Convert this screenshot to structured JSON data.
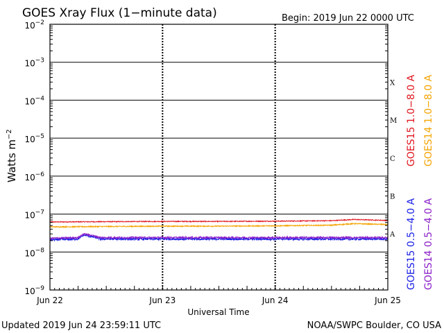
{
  "chart_data": {
    "type": "line",
    "title": "GOES Xray Flux (1−minute data)",
    "begin_text": "Begin:  2019 Jun 22 0000 UTC",
    "xlabel": "Universal Time",
    "ylabel": "Watts m",
    "ylabel_exp": "−2",
    "y_scale": "log",
    "ylim": [
      1e-09,
      0.01
    ],
    "y_ticks": [
      {
        "base": "10",
        "exp": "−9",
        "value": 1e-09
      },
      {
        "base": "10",
        "exp": "−8",
        "value": 1e-08
      },
      {
        "base": "10",
        "exp": "−7",
        "value": 1e-07
      },
      {
        "base": "10",
        "exp": "−6",
        "value": 1e-06
      },
      {
        "base": "10",
        "exp": "−5",
        "value": 1e-05
      },
      {
        "base": "10",
        "exp": "−4",
        "value": 0.0001
      },
      {
        "base": "10",
        "exp": "−3",
        "value": 0.001
      },
      {
        "base": "10",
        "exp": "−2",
        "value": 0.01
      }
    ],
    "x_ticks": [
      "Jun 22",
      "Jun 23",
      "Jun 24",
      "Jun 25"
    ],
    "flare_classes": [
      {
        "label": "A",
        "value": 3e-08
      },
      {
        "label": "B",
        "value": 3e-07
      },
      {
        "label": "C",
        "value": 3e-06
      },
      {
        "label": "M",
        "value": 3e-05
      },
      {
        "label": "X",
        "value": 0.0003
      }
    ],
    "grid": true,
    "legend_position": "right",
    "series": [
      {
        "name": "GOES15 1.0−8.0 A",
        "color": "#e0141e",
        "base": 6.2e-08,
        "x_days": [
          0,
          0.5,
          1,
          1.5,
          2,
          2.5,
          2.7,
          3
        ],
        "values": [
          6.2e-08,
          6.3e-08,
          6.4e-08,
          6.4e-08,
          6.5e-08,
          6.7e-08,
          7.2e-08,
          6.8e-08
        ]
      },
      {
        "name": "GOES14 1.0−8.0 A",
        "color": "#f5a300",
        "base": 4.6e-08,
        "x_days": [
          0,
          0.5,
          1,
          1.5,
          2,
          2.5,
          2.7,
          3
        ],
        "values": [
          4.6e-08,
          4.7e-08,
          4.8e-08,
          4.8e-08,
          4.9e-08,
          5.1e-08,
          5.6e-08,
          5.3e-08
        ]
      },
      {
        "name": "GOES15 0.5−4.0 A",
        "color": "#1a20e6",
        "base": 2.1e-08,
        "x_days": [
          0,
          0.25,
          0.3,
          0.36,
          0.45,
          1,
          1.5,
          2,
          2.5,
          3
        ],
        "values": [
          2.1e-08,
          2.2e-08,
          2.8e-08,
          2.6e-08,
          2.2e-08,
          2.2e-08,
          2.2e-08,
          2.2e-08,
          2.2e-08,
          2.2e-08
        ]
      },
      {
        "name": "GOES14 0.5−4.0 A",
        "color": "#8a1ec8",
        "base": 2.3e-08,
        "x_days": [
          0,
          0.25,
          0.3,
          0.36,
          0.45,
          1,
          1.5,
          2,
          2.5,
          3
        ],
        "values": [
          2.3e-08,
          2.4e-08,
          3e-08,
          2.8e-08,
          2.4e-08,
          2.4e-08,
          2.4e-08,
          2.4e-08,
          2.4e-08,
          2.4e-08
        ]
      }
    ]
  },
  "footer": {
    "updated": "Updated 2019 Jun 24 23:59:11 UTC",
    "credit": "NOAA/SWPC Boulder, CO USA"
  }
}
